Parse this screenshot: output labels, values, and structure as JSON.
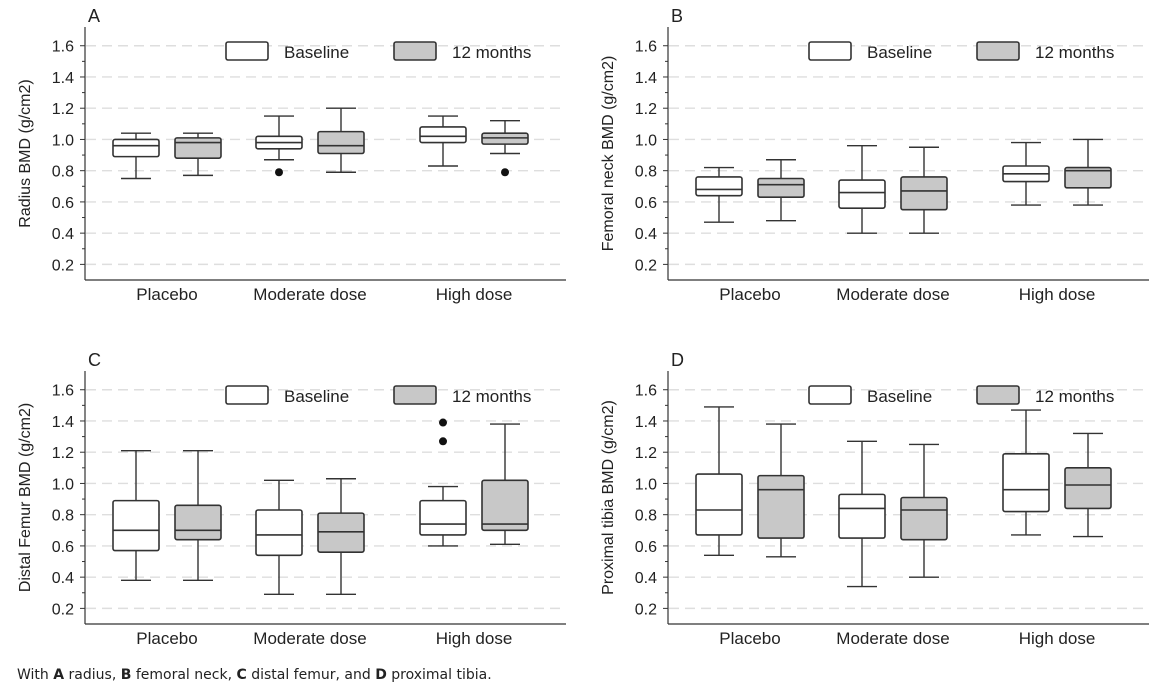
{
  "colors": {
    "baseline_fill": "#ffffff",
    "followup_fill": "#c8c8c8",
    "stroke": "#333333",
    "grid": "#dedede",
    "text": "#222222"
  },
  "caption": {
    "prefix": "With ",
    "a_letter": "A",
    "a_text": " radius, ",
    "b_letter": "B",
    "b_text": " femoral neck, ",
    "c_letter": "C",
    "c_text": " distal femur, and ",
    "d_letter": "D",
    "d_text": " proximal tibia."
  },
  "chart_data": [
    {
      "type": "box",
      "panel_label": "A",
      "ylabel": "Radius BMD (g/cm2)",
      "ylim": [
        0.1,
        1.72
      ],
      "yticks": [
        "0.2",
        "0.4",
        "0.6",
        "0.8",
        "1.0",
        "1.2",
        "1.4",
        "1.6"
      ],
      "grid": true,
      "legend_position": "top-right",
      "categories": [
        "Placebo",
        "Moderate dose",
        "High dose"
      ],
      "series": [
        {
          "name": "Baseline",
          "boxes": [
            {
              "min": 0.75,
              "q1": 0.89,
              "median": 0.96,
              "q3": 1.0,
              "max": 1.04,
              "outliers": []
            },
            {
              "min": 0.87,
              "q1": 0.94,
              "median": 0.98,
              "q3": 1.02,
              "max": 1.15,
              "outliers": [
                0.79
              ]
            },
            {
              "min": 0.83,
              "q1": 0.98,
              "median": 1.02,
              "q3": 1.08,
              "max": 1.15,
              "outliers": []
            }
          ]
        },
        {
          "name": "12 months",
          "boxes": [
            {
              "min": 0.77,
              "q1": 0.88,
              "median": 0.98,
              "q3": 1.01,
              "max": 1.04,
              "outliers": []
            },
            {
              "min": 0.79,
              "q1": 0.91,
              "median": 0.96,
              "q3": 1.05,
              "max": 1.2,
              "outliers": []
            },
            {
              "min": 0.91,
              "q1": 0.97,
              "median": 1.01,
              "q3": 1.04,
              "max": 1.12,
              "outliers": [
                0.79
              ]
            }
          ]
        }
      ]
    },
    {
      "type": "box",
      "panel_label": "B",
      "ylabel": "Femoral neck BMD (g/cm2)",
      "ylim": [
        0.1,
        1.72
      ],
      "yticks": [
        "0.2",
        "0.4",
        "0.6",
        "0.8",
        "1.0",
        "1.2",
        "1.4",
        "1.6"
      ],
      "grid": true,
      "legend_position": "top-right",
      "categories": [
        "Placebo",
        "Moderate dose",
        "High dose"
      ],
      "series": [
        {
          "name": "Baseline",
          "boxes": [
            {
              "min": 0.47,
              "q1": 0.64,
              "median": 0.68,
              "q3": 0.76,
              "max": 0.82,
              "outliers": []
            },
            {
              "min": 0.4,
              "q1": 0.56,
              "median": 0.66,
              "q3": 0.74,
              "max": 0.96,
              "outliers": []
            },
            {
              "min": 0.58,
              "q1": 0.73,
              "median": 0.78,
              "q3": 0.83,
              "max": 0.98,
              "outliers": []
            }
          ]
        },
        {
          "name": "12 months",
          "boxes": [
            {
              "min": 0.48,
              "q1": 0.63,
              "median": 0.71,
              "q3": 0.75,
              "max": 0.87,
              "outliers": []
            },
            {
              "min": 0.4,
              "q1": 0.55,
              "median": 0.67,
              "q3": 0.76,
              "max": 0.95,
              "outliers": []
            },
            {
              "min": 0.58,
              "q1": 0.69,
              "median": 0.8,
              "q3": 0.82,
              "max": 1.0,
              "outliers": []
            }
          ]
        }
      ]
    },
    {
      "type": "box",
      "panel_label": "C",
      "ylabel": "Distal Femur BMD (g/cm2)",
      "ylim": [
        0.1,
        1.72
      ],
      "yticks": [
        "0.2",
        "0.4",
        "0.6",
        "0.8",
        "1.0",
        "1.2",
        "1.4",
        "1.6"
      ],
      "grid": true,
      "legend_position": "top-right",
      "categories": [
        "Placebo",
        "Moderate dose",
        "High dose"
      ],
      "series": [
        {
          "name": "Baseline",
          "boxes": [
            {
              "min": 0.38,
              "q1": 0.57,
              "median": 0.7,
              "q3": 0.89,
              "max": 1.21,
              "outliers": []
            },
            {
              "min": 0.29,
              "q1": 0.54,
              "median": 0.67,
              "q3": 0.83,
              "max": 1.02,
              "outliers": []
            },
            {
              "min": 0.6,
              "q1": 0.67,
              "median": 0.74,
              "q3": 0.89,
              "max": 0.98,
              "outliers": [
                1.27,
                1.39
              ]
            }
          ]
        },
        {
          "name": "12 months",
          "boxes": [
            {
              "min": 0.38,
              "q1": 0.64,
              "median": 0.7,
              "q3": 0.86,
              "max": 1.21,
              "outliers": []
            },
            {
              "min": 0.29,
              "q1": 0.56,
              "median": 0.69,
              "q3": 0.81,
              "max": 1.03,
              "outliers": []
            },
            {
              "min": 0.61,
              "q1": 0.7,
              "median": 0.74,
              "q3": 1.02,
              "max": 1.38,
              "outliers": []
            }
          ]
        }
      ]
    },
    {
      "type": "box",
      "panel_label": "D",
      "ylabel": "Proximal tibia BMD (g/cm2)",
      "ylim": [
        0.1,
        1.72
      ],
      "yticks": [
        "0.2",
        "0.4",
        "0.6",
        "0.8",
        "1.0",
        "1.2",
        "1.4",
        "1.6"
      ],
      "grid": true,
      "legend_position": "top-right",
      "categories": [
        "Placebo",
        "Moderate dose",
        "High dose"
      ],
      "series": [
        {
          "name": "Baseline",
          "boxes": [
            {
              "min": 0.54,
              "q1": 0.67,
              "median": 0.83,
              "q3": 1.06,
              "max": 1.49,
              "outliers": []
            },
            {
              "min": 0.34,
              "q1": 0.65,
              "median": 0.84,
              "q3": 0.93,
              "max": 1.27,
              "outliers": []
            },
            {
              "min": 0.67,
              "q1": 0.82,
              "median": 0.96,
              "q3": 1.19,
              "max": 1.47,
              "outliers": []
            }
          ]
        },
        {
          "name": "12 months",
          "boxes": [
            {
              "min": 0.53,
              "q1": 0.65,
              "median": 0.96,
              "q3": 1.05,
              "max": 1.38,
              "outliers": []
            },
            {
              "min": 0.4,
              "q1": 0.64,
              "median": 0.83,
              "q3": 0.91,
              "max": 1.25,
              "outliers": []
            },
            {
              "min": 0.66,
              "q1": 0.84,
              "median": 0.99,
              "q3": 1.1,
              "max": 1.32,
              "outliers": []
            }
          ]
        }
      ]
    }
  ]
}
